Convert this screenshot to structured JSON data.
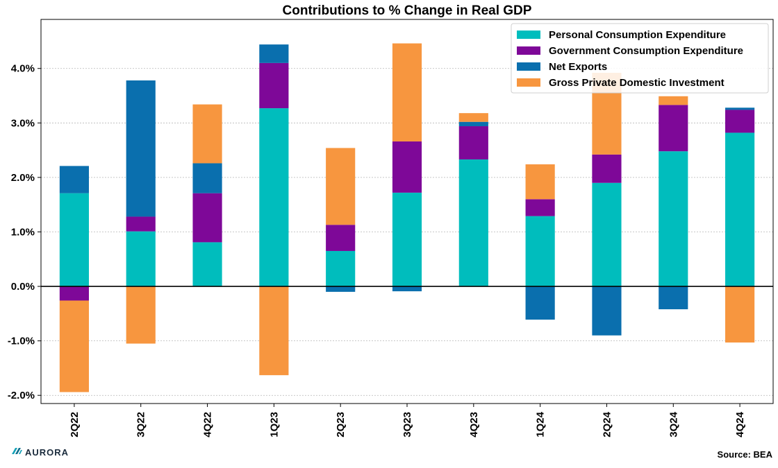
{
  "chart_data": {
    "type": "bar",
    "stacked": true,
    "title": "Contributions to % Change in Real GDP",
    "xlabel": "",
    "ylabel": "",
    "categories": [
      "2Q22",
      "3Q22",
      "4Q22",
      "1Q23",
      "2Q23",
      "3Q23",
      "4Q23",
      "1Q24",
      "2Q24",
      "3Q24",
      "4Q24"
    ],
    "ylim": [
      -2.15,
      4.9
    ],
    "yticks": [
      -2.0,
      -1.0,
      0.0,
      1.0,
      2.0,
      3.0,
      4.0
    ],
    "ytick_labels": [
      "-2.0%",
      "-1.0%",
      "0.0%",
      "1.0%",
      "2.0%",
      "3.0%",
      "4.0%"
    ],
    "grid": true,
    "legend_position": "top-right",
    "series": [
      {
        "name": "Personal Consumption Expenditure",
        "color": "#00BDBD",
        "values": [
          1.71,
          1.01,
          0.81,
          3.27,
          0.65,
          1.72,
          2.33,
          1.29,
          1.9,
          2.48,
          2.82
        ]
      },
      {
        "name": "Government Consumption Expenditure",
        "color": "#7E0898",
        "values": [
          -0.26,
          0.27,
          0.9,
          0.83,
          0.48,
          0.94,
          0.61,
          0.31,
          0.52,
          0.85,
          0.42
        ]
      },
      {
        "name": "Net Exports",
        "color": "#0A6FAE",
        "values": [
          0.5,
          2.5,
          0.55,
          0.34,
          -0.1,
          -0.09,
          0.08,
          -0.61,
          -0.9,
          -0.42,
          0.04
        ]
      },
      {
        "name": "Gross Private Domestic Investment",
        "color": "#F7963F",
        "values": [
          -1.68,
          -1.05,
          1.08,
          -1.63,
          1.41,
          1.8,
          0.16,
          0.64,
          1.5,
          0.16,
          -1.03
        ]
      }
    ]
  },
  "footer": {
    "brand": "AURORA",
    "source": "Source: BEA"
  }
}
